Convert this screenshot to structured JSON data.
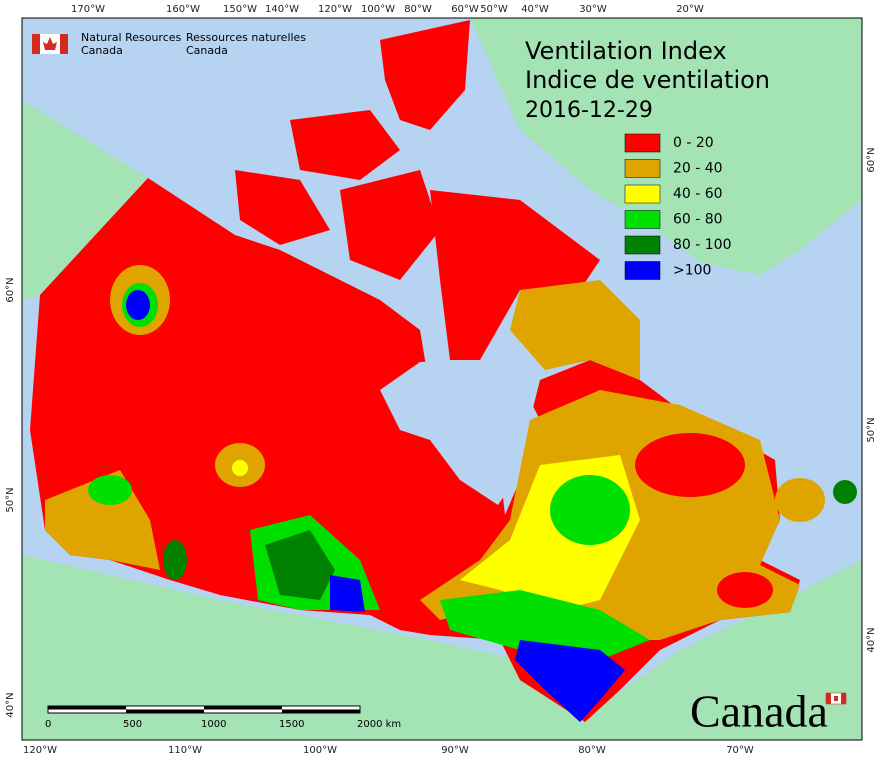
{
  "agency": {
    "english": [
      "Natural Resources",
      "Canada"
    ],
    "french": [
      "Ressources naturelles",
      "Canada"
    ]
  },
  "title": {
    "line1": "Ventilation Index",
    "line2": "Indice de ventilation",
    "date": "2016-12-29"
  },
  "legend": [
    {
      "label": "0 - 20",
      "color": "#ff0000"
    },
    {
      "label": "20 - 40",
      "color": "#e0a400"
    },
    {
      "label": "40 - 60",
      "color": "#ffff00"
    },
    {
      "label": "60 - 80",
      "color": "#00e000"
    },
    {
      "label": "80 - 100",
      "color": "#008000"
    },
    {
      "label": ">100",
      "color": "#0000ff"
    }
  ],
  "scale_bar": {
    "labels": [
      "0",
      "500",
      "1000",
      "1500",
      "2000 km"
    ]
  },
  "graticule": {
    "top": [
      "170°W",
      "160°W",
      "150°W",
      "140°W",
      "120°W",
      "100°W",
      "80°W",
      "60°W",
      "50°W",
      "40°W",
      "30°W",
      "20°W"
    ],
    "bottom": [
      "120°W",
      "110°W",
      "100°W",
      "90°W",
      "80°W",
      "70°W"
    ],
    "left": [
      "60°N",
      "50°N",
      "40°N"
    ],
    "right": [
      "60°N",
      "50°N",
      "40°N"
    ]
  },
  "wordmark": "Canada"
}
